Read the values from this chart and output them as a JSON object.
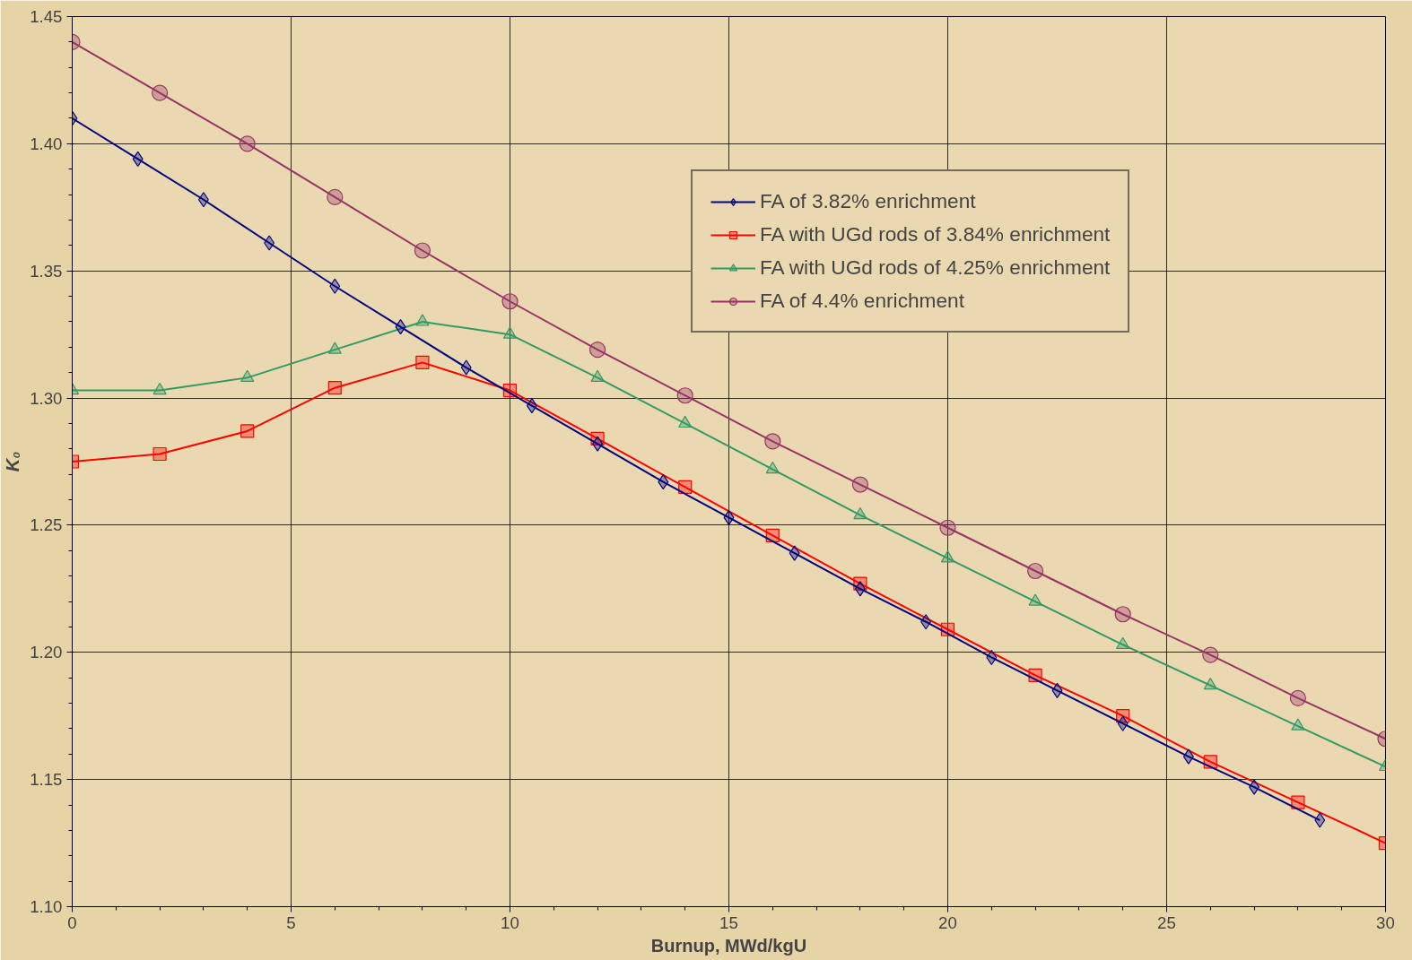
{
  "chart_data": {
    "type": "line",
    "xlabel": "Burnup, MWd/kgU",
    "ylabel": "K₀",
    "xlim": [
      0,
      30
    ],
    "ylim": [
      1.1,
      1.45
    ],
    "xticks": [
      0,
      5,
      10,
      15,
      20,
      25,
      30
    ],
    "yticks": [
      {
        "value": 1.1,
        "label": "1.10"
      },
      {
        "value": 1.15,
        "label": "1.15"
      },
      {
        "value": 1.2,
        "label": "1.20"
      },
      {
        "value": 1.25,
        "label": "1.25"
      },
      {
        "value": 1.3,
        "label": "1.30"
      },
      {
        "value": 1.35,
        "label": "1.35"
      },
      {
        "value": 1.4,
        "label": "1.40"
      },
      {
        "value": 1.45,
        "label": "1.45"
      }
    ],
    "grid": true,
    "legend": "top right",
    "line_style": "solid",
    "series": [
      {
        "name": "FA of 3.82% enrichment",
        "color": "#000080",
        "marker": "diamond",
        "x": [
          0,
          1.5,
          3,
          4.5,
          6,
          7.5,
          9,
          10.5,
          12,
          13.5,
          15,
          16.5,
          18,
          19.5,
          21,
          22.5,
          24,
          25.5,
          27,
          28.5
        ],
        "values": [
          1.41,
          1.394,
          1.378,
          1.361,
          1.344,
          1.328,
          1.312,
          1.297,
          1.282,
          1.267,
          1.253,
          1.239,
          1.225,
          1.212,
          1.198,
          1.185,
          1.172,
          1.159,
          1.147,
          1.134
        ]
      },
      {
        "name": "FA with UGd rods of 3.84% enrichment",
        "color": "#ff0000",
        "marker": "square",
        "x": [
          0,
          2,
          4,
          6,
          8,
          10,
          12,
          14,
          16,
          18,
          20,
          22,
          24,
          26,
          28,
          30
        ],
        "values": [
          1.275,
          1.278,
          1.287,
          1.304,
          1.314,
          1.303,
          1.284,
          1.265,
          1.246,
          1.227,
          1.209,
          1.191,
          1.175,
          1.157,
          1.141,
          1.125
        ]
      },
      {
        "name": "FA with UGd rods of 4.25% enrichment",
        "color": "#339966",
        "marker": "triangle",
        "x": [
          0,
          2,
          4,
          6,
          8,
          10,
          12,
          14,
          16,
          18,
          20,
          22,
          24,
          26,
          28,
          30
        ],
        "values": [
          1.303,
          1.303,
          1.308,
          1.319,
          1.33,
          1.325,
          1.308,
          1.29,
          1.272,
          1.254,
          1.237,
          1.22,
          1.203,
          1.187,
          1.171,
          1.155
        ]
      },
      {
        "name": "FA of 4.4% enrichment",
        "color": "#993366",
        "marker": "circle",
        "x": [
          0,
          2,
          4,
          6,
          8,
          10,
          12,
          14,
          16,
          18,
          20,
          22,
          24,
          26,
          28,
          30
        ],
        "values": [
          1.44,
          1.42,
          1.4,
          1.379,
          1.358,
          1.338,
          1.319,
          1.301,
          1.283,
          1.266,
          1.249,
          1.232,
          1.215,
          1.199,
          1.182,
          1.166
        ]
      }
    ]
  }
}
